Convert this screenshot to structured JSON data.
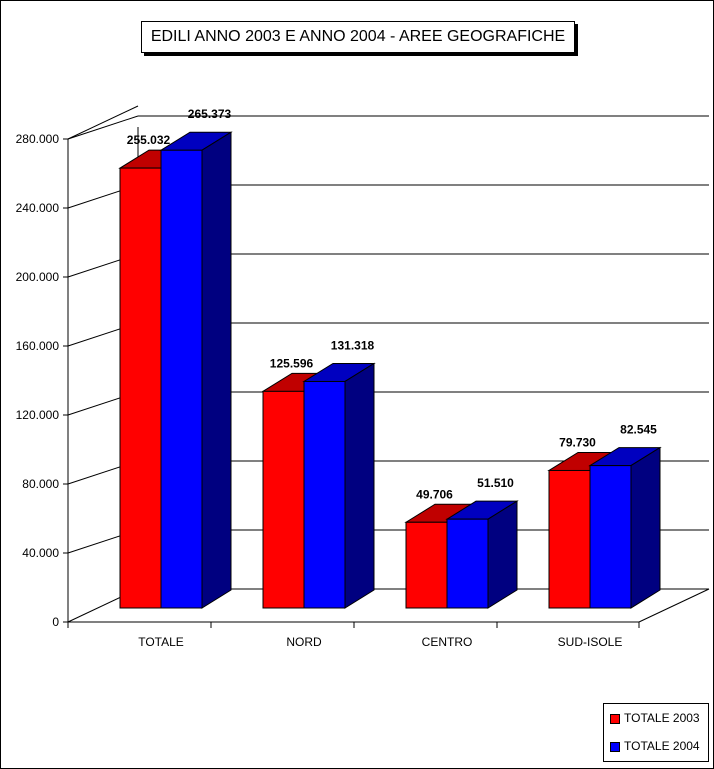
{
  "chart_data": {
    "type": "bar",
    "title": "EDILI  ANNO 2003 E ANNO 2004 - AREE GEOGRAFICHE",
    "categories": [
      "TOTALE",
      "NORD",
      "CENTRO",
      "SUD-ISOLE"
    ],
    "series": [
      {
        "name": "TOTALE 2003",
        "values": [
          255032,
          125596,
          49706,
          79730
        ],
        "labels": [
          "255.032",
          "125.596",
          "49.706",
          "79.730"
        ],
        "color": "#ff0000",
        "top_color": "#c00000"
      },
      {
        "name": "TOTALE 2004",
        "values": [
          265373,
          131318,
          51510,
          82545
        ],
        "labels": [
          "265.373",
          "131.318",
          "51.510",
          "82.545"
        ],
        "color": "#0000ff",
        "top_color": "#0000c0",
        "side_color": "#000080"
      }
    ],
    "y_ticks": [
      0,
      40000,
      80000,
      120000,
      160000,
      200000,
      240000,
      280000
    ],
    "y_tick_labels": [
      "0",
      "40.000",
      "80.000",
      "120.000",
      "160.000",
      "200.000",
      "240.000",
      "280.000"
    ],
    "ylim": [
      0,
      280000
    ],
    "grid": true,
    "legend_position": "bottom-right",
    "xlabel": "",
    "ylabel": ""
  }
}
